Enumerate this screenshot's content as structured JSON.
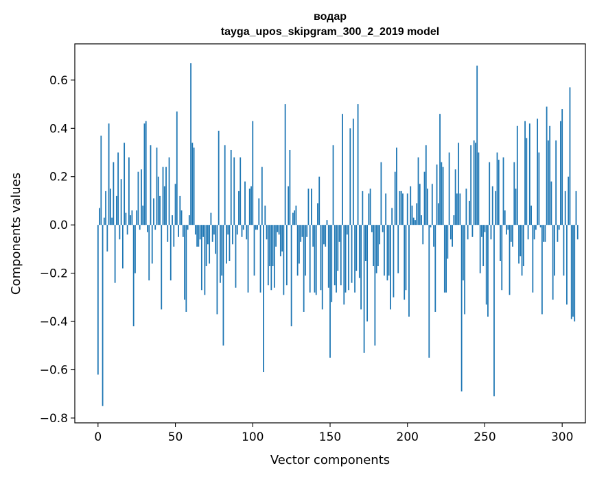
{
  "chart_data": {
    "type": "bar",
    "title_line1": "водар",
    "title_line2": "tayga_upos_skipgram_300_2_2019 model",
    "xlabel": "Vector components",
    "ylabel": "Components values",
    "xlim": [
      -15,
      315
    ],
    "ylim": [
      -0.82,
      0.75
    ],
    "xticks": [
      0,
      50,
      100,
      150,
      200,
      250,
      300
    ],
    "xtick_labels": [
      "0",
      "50",
      "100",
      "150",
      "200",
      "250",
      "300"
    ],
    "yticks": [
      -0.8,
      -0.6,
      -0.4,
      -0.2,
      0.0,
      0.2,
      0.4,
      0.6
    ],
    "ytick_labels": [
      "−0.8",
      "−0.6",
      "−0.4",
      "−0.2",
      "0.0",
      "0.2",
      "0.4",
      "0.6"
    ],
    "bar_color": "#1f77b4",
    "values": [
      -0.62,
      0.07,
      0.37,
      -0.75,
      0.03,
      0.14,
      -0.11,
      0.42,
      0.15,
      0.03,
      0.26,
      -0.24,
      0.12,
      0.3,
      -0.06,
      0.19,
      -0.18,
      0.34,
      0.05,
      -0.04,
      0.28,
      0.04,
      0.06,
      -0.42,
      -0.2,
      0.06,
      0.22,
      -0.02,
      0.23,
      0.08,
      0.42,
      0.43,
      -0.03,
      -0.23,
      0.33,
      -0.16,
      0.11,
      -0.02,
      0.32,
      0.2,
      0.12,
      -0.35,
      0.24,
      0.16,
      0.24,
      -0.07,
      0.28,
      -0.23,
      0.04,
      -0.09,
      0.17,
      0.47,
      -0.05,
      0.12,
      0.06,
      -0.05,
      -0.31,
      -0.36,
      -0.02,
      0.04,
      0.67,
      0.34,
      0.32,
      -0.04,
      -0.09,
      -0.09,
      -0.06,
      -0.27,
      -0.05,
      -0.29,
      -0.17,
      -0.08,
      -0.16,
      0.05,
      -0.07,
      -0.04,
      -0.12,
      -0.37,
      0.39,
      -0.24,
      -0.21,
      -0.5,
      0.33,
      -0.16,
      -0.04,
      -0.15,
      0.31,
      -0.08,
      0.28,
      -0.26,
      -0.04,
      0.14,
      0.28,
      -0.05,
      -0.02,
      0.18,
      -0.06,
      -0.28,
      0.15,
      0.16,
      0.43,
      -0.21,
      -0.02,
      -0.02,
      0.11,
      -0.28,
      0.24,
      -0.61,
      0.08,
      -0.06,
      -0.25,
      -0.17,
      -0.27,
      -0.17,
      -0.26,
      -0.09,
      -0.03,
      -0.04,
      -0.13,
      -0.11,
      -0.29,
      0.5,
      -0.25,
      0.16,
      0.31,
      -0.42,
      0.05,
      0.06,
      0.08,
      -0.21,
      -0.16,
      -0.07,
      -0.05,
      -0.36,
      -0.21,
      -0.05,
      0.15,
      -0.28,
      0.15,
      -0.09,
      -0.28,
      -0.29,
      0.09,
      0.2,
      -0.27,
      -0.35,
      -0.08,
      -0.09,
      0.02,
      -0.26,
      -0.55,
      -0.32,
      0.33,
      -0.25,
      -0.28,
      -0.19,
      -0.07,
      -0.25,
      0.46,
      -0.33,
      -0.28,
      -0.04,
      -0.27,
      0.4,
      -0.24,
      0.44,
      -0.28,
      -0.19,
      0.5,
      -0.22,
      -0.35,
      0.14,
      -0.53,
      -0.15,
      -0.4,
      0.13,
      0.15,
      -0.03,
      -0.17,
      -0.5,
      -0.2,
      -0.17,
      -0.08,
      0.26,
      -0.03,
      -0.21,
      0.13,
      -0.23,
      -0.21,
      -0.35,
      0.07,
      -0.3,
      0.22,
      0.32,
      -0.2,
      0.14,
      0.14,
      0.13,
      -0.31,
      -0.27,
      0.13,
      -0.38,
      0.16,
      0.08,
      0.03,
      0.02,
      0.09,
      0.28,
      0.17,
      0.04,
      -0.08,
      0.22,
      0.33,
      0.15,
      -0.55,
      -0.01,
      0.17,
      -0.09,
      -0.36,
      0.25,
      0.09,
      0.46,
      0.26,
      0.24,
      -0.28,
      -0.28,
      -0.14,
      0.3,
      -0.06,
      -0.09,
      0.04,
      0.23,
      0.13,
      0.34,
      0.13,
      -0.69,
      -0.23,
      -0.37,
      0.15,
      -0.06,
      0.1,
      0.33,
      -0.05,
      0.35,
      0.34,
      0.66,
      0.3,
      -0.2,
      -0.05,
      -0.17,
      -0.03,
      -0.33,
      -0.38,
      0.26,
      -0.06,
      0.16,
      -0.71,
      0.14,
      0.3,
      0.27,
      -0.15,
      -0.27,
      0.28,
      0.06,
      -0.04,
      -0.02,
      -0.29,
      -0.07,
      -0.09,
      0.26,
      0.15,
      0.41,
      -0.16,
      -0.13,
      -0.21,
      -0.17,
      0.43,
      0.36,
      -0.06,
      0.42,
      0.08,
      -0.28,
      -0.06,
      -0.02,
      0.44,
      0.3,
      -0.01,
      -0.37,
      -0.07,
      -0.07,
      0.49,
      0.35,
      0.41,
      0.18,
      -0.31,
      -0.21,
      0.35,
      -0.07,
      -0.02,
      0.43,
      0.48,
      -0.21,
      0.14,
      -0.33,
      0.2,
      0.57,
      -0.39,
      -0.38,
      -0.4,
      0.14,
      -0.06
    ]
  }
}
